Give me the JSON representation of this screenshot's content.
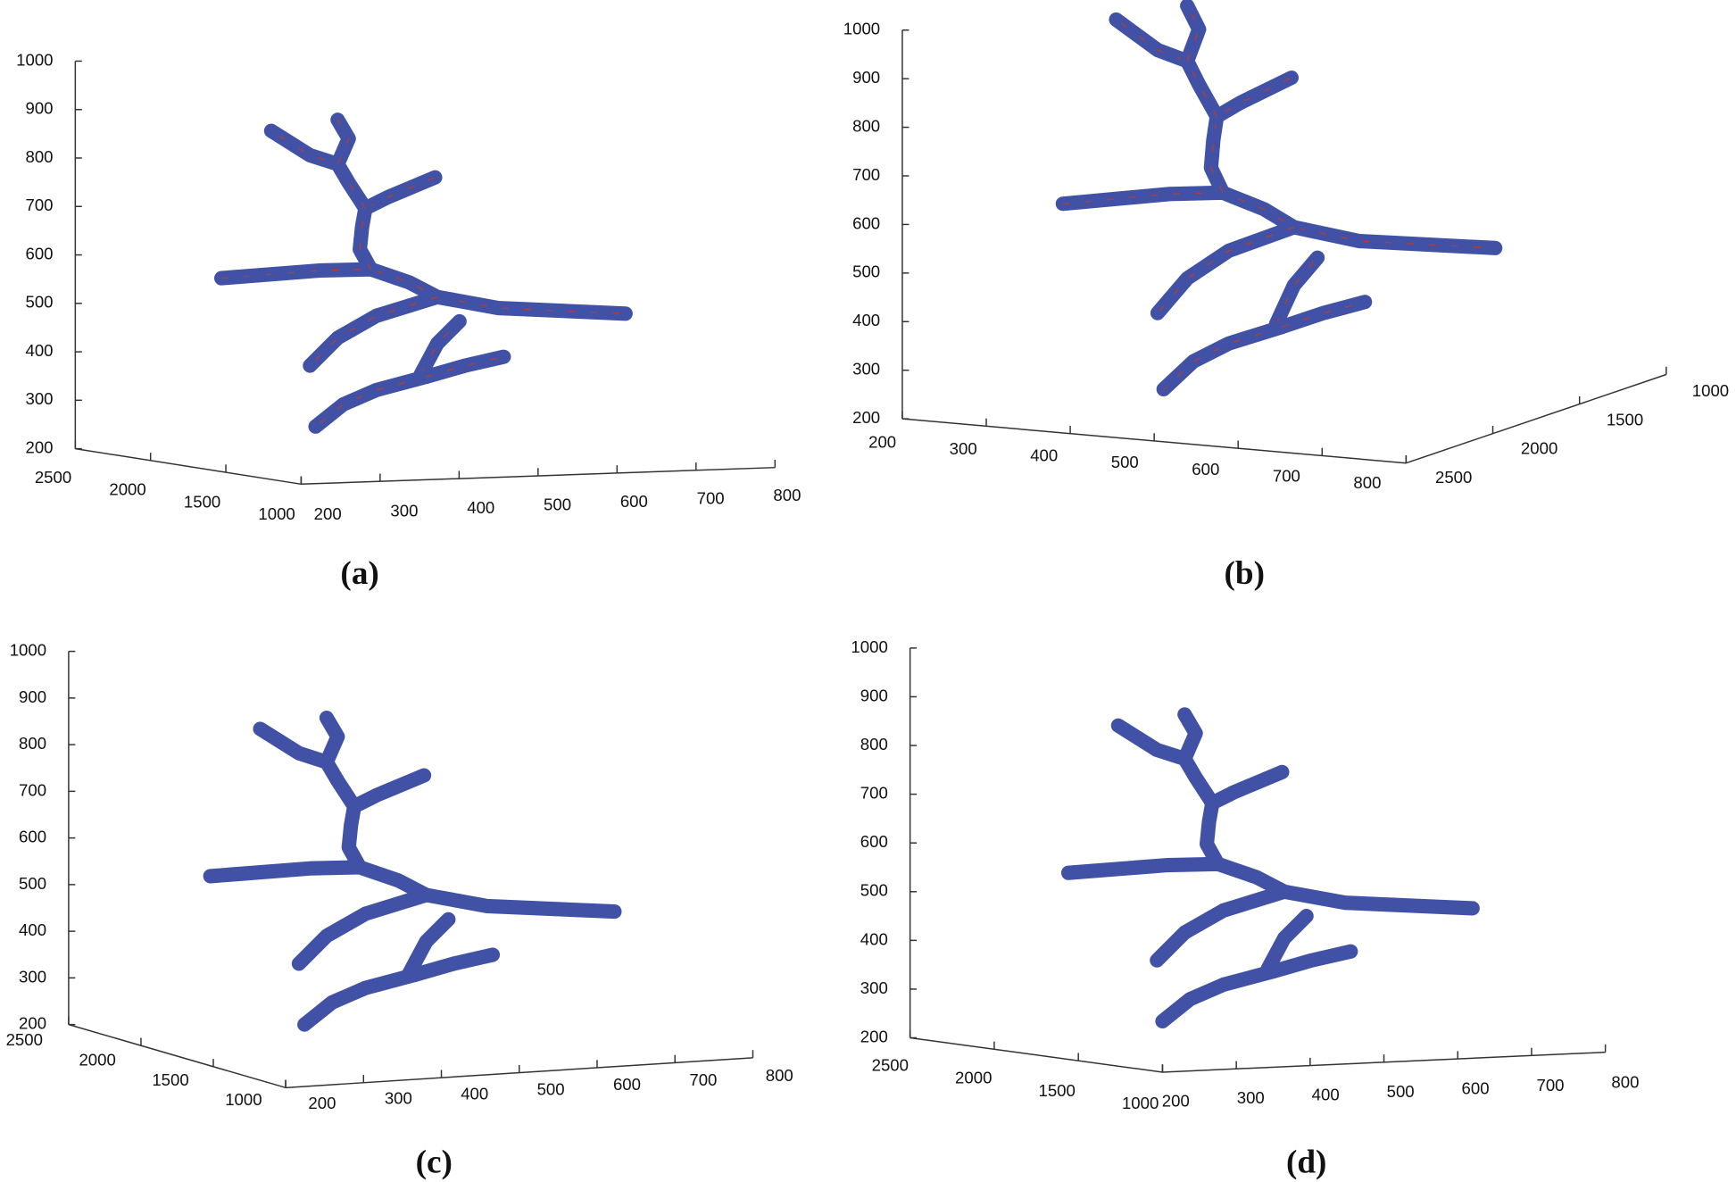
{
  "panels": [
    {
      "caption": "(a)",
      "zticks": [
        1000,
        900,
        800,
        700,
        600,
        500,
        400,
        300,
        200
      ],
      "yticks": [
        2500,
        2000,
        1500,
        1000
      ],
      "xticks": [
        200,
        300,
        400,
        500,
        600,
        700,
        800
      ]
    },
    {
      "caption": "(b)",
      "zticks": [
        1000,
        900,
        800,
        700,
        600,
        500,
        400,
        300,
        200
      ],
      "yticks": [
        2500,
        2000,
        1500,
        1000
      ],
      "xticks": [
        200,
        300,
        400,
        500,
        600,
        700,
        800
      ]
    },
    {
      "caption": "(c)",
      "zticks": [
        1000,
        900,
        800,
        700,
        600,
        500,
        400,
        300,
        200
      ],
      "yticks": [
        2500,
        2000,
        1500,
        1000
      ],
      "xticks": [
        200,
        300,
        400,
        500,
        600,
        700,
        800
      ]
    },
    {
      "caption": "(d)",
      "zticks": [
        1000,
        900,
        800,
        700,
        600,
        500,
        400,
        300,
        200
      ],
      "yticks": [
        2500,
        2000,
        1500,
        1000
      ],
      "xticks": [
        200,
        300,
        400,
        500,
        600,
        700,
        800
      ]
    }
  ]
}
